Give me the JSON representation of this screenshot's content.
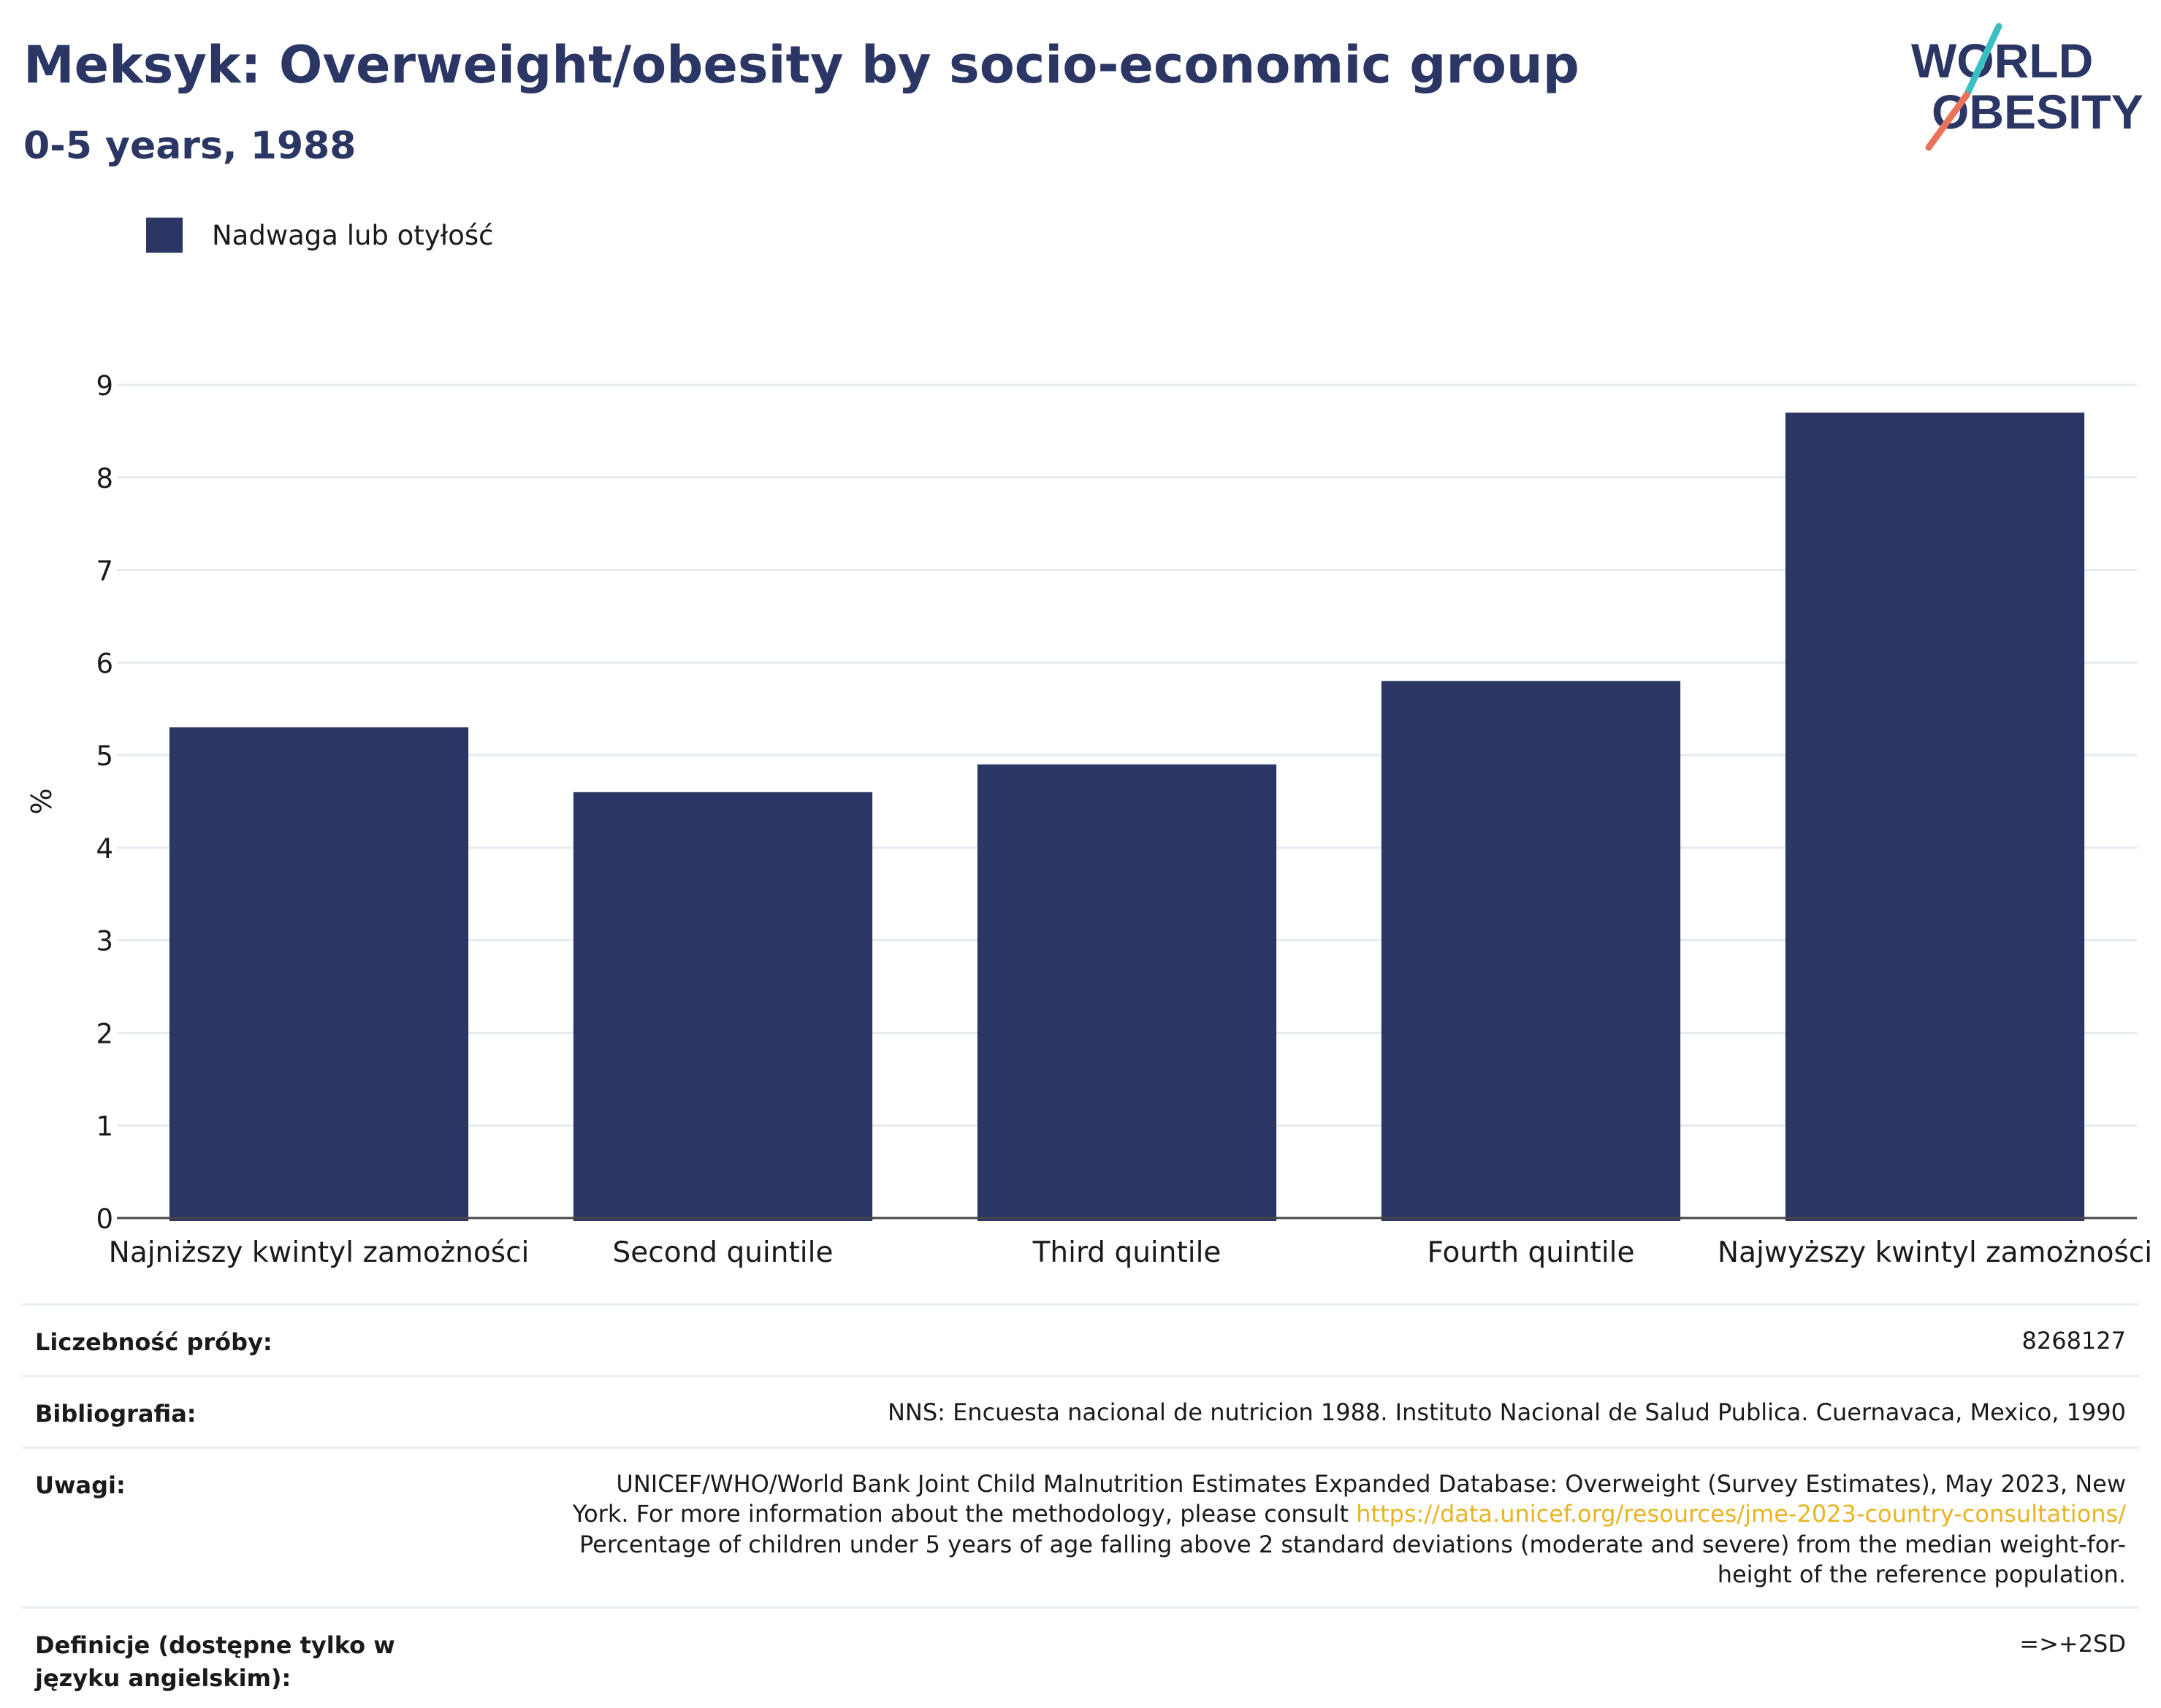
{
  "header": {
    "title": "Meksyk: Overweight/obesity by socio-economic group",
    "subtitle": "0-5 years, 1988",
    "logo_line1": "WORLD",
    "logo_line2": "OBESITY"
  },
  "legend": {
    "label": "Nadwaga lub otyłość"
  },
  "colors": {
    "bar": "#2b3664",
    "title": "#2b3664",
    "link": "#e8b422",
    "logo_teal": "#3bbfc0",
    "logo_coral": "#e8735a"
  },
  "chart_data": {
    "type": "bar",
    "categories": [
      "Najniższy kwintyl zamożności",
      "Second quintile",
      "Third quintile",
      "Fourth quintile",
      "Najwyższy kwintyl zamożności"
    ],
    "series": [
      {
        "name": "Nadwaga lub otyłość",
        "values": [
          5.3,
          4.6,
          4.9,
          5.8,
          8.7
        ]
      }
    ],
    "ylabel": "%",
    "ylim": [
      0,
      9
    ],
    "yticks": [
      0,
      1,
      2,
      3,
      4,
      5,
      6,
      7,
      8,
      9
    ],
    "grid": true
  },
  "info": {
    "sample_label": "Liczebność próby:",
    "sample_value": "8268127",
    "bibliography_label": "Bibliografia:",
    "bibliography_value": "NNS: Encuesta nacional de nutricion 1988. Instituto Nacional de Salud Publica. Cuernavaca, Mexico, 1990",
    "notes_label": "Uwagi:",
    "notes_line1": "UNICEF/WHO/World Bank Joint Child Malnutrition Estimates Expanded Database: Overweight (Survey Estimates), May 2023, New",
    "notes_line2": "York. For more information about the methodology, please consult",
    "notes_link": "https://data.unicef.org/resources/jme-2023-country-consultations/",
    "notes_line3": "Percentage of children under 5 years of age falling above 2 standard deviations (moderate and severe) from the median weight-for-",
    "notes_line4": "height of the reference population.",
    "definitions_label": "Definicje (dostępne tylko w języku angielskim):",
    "definitions_value": "=>+2SD"
  }
}
